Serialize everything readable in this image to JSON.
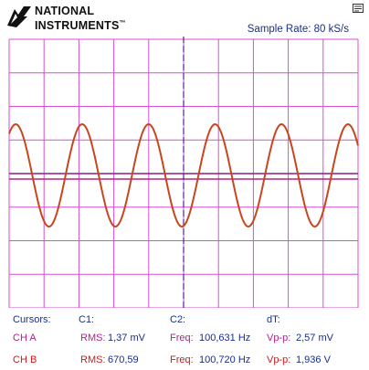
{
  "header": {
    "logo_line1": "NATIONAL",
    "logo_line2": "INSTRUMENTS",
    "logo_tm": "™",
    "sample_rate_label": "Sample Rate:",
    "sample_rate_value": "80 kS/s"
  },
  "colors": {
    "grid": "#d54fd5",
    "waveform": "#c8461e",
    "cursor_a": "#8a1e8a",
    "cursor_b": "#b0238c",
    "text_blue": "#1a2e8c",
    "text_red": "#c81e1e"
  },
  "scope": {
    "waveform_cycles_visible": 5.25,
    "grid_divisions_x": 10,
    "grid_divisions_y": 8
  },
  "readout": {
    "cursors_label": "Cursors:",
    "c1_label": "C1:",
    "c2_label": "C2:",
    "dt_label": "dT:",
    "cha": {
      "label": "CH A",
      "rms_label": "RMS:",
      "rms_value": "1,37 mV",
      "freq_label": "Freq:",
      "freq_value": "100,631 Hz",
      "vpp_label": "Vp-p:",
      "vpp_value": "2,57 mV"
    },
    "chb": {
      "label": "CH B",
      "rms_label": "RMS:",
      "rms_value": "670,59",
      "freq_label": "Freq:",
      "freq_value": "100,720 Hz",
      "vpp_label": "Vp-p:",
      "vpp_value": "1,936 V"
    }
  }
}
